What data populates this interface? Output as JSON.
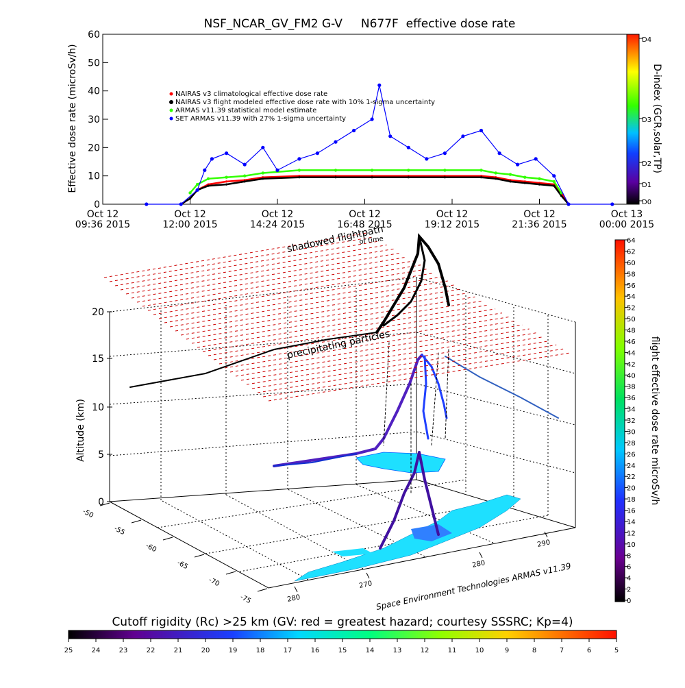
{
  "figure": {
    "title": "NSF_NCAR_GV_FM2 G-V     N677F  effective dose rate",
    "credit": "Space Environment Technologies ARMAS v11.39"
  },
  "chart_data": [
    {
      "type": "scatter",
      "ylabel": "Effective dose rate (microSv/h)",
      "ylim": [
        0,
        60
      ],
      "yticks": [
        "0",
        "10",
        "20",
        "30",
        "40",
        "50",
        "60"
      ],
      "xlim": [
        "2015-10-12 09:36",
        "2015-10-13 00:00"
      ],
      "x_ticks": [
        {
          "line1": "Oct 12",
          "line2": "09:36 2015"
        },
        {
          "line1": "Oct 12",
          "line2": "12:00 2015"
        },
        {
          "line1": "Oct 12",
          "line2": "14:24 2015"
        },
        {
          "line1": "Oct 12",
          "line2": "16:48 2015"
        },
        {
          "line1": "Oct 12",
          "line2": "19:12 2015"
        },
        {
          "line1": "Oct 12",
          "line2": "21:36 2015"
        },
        {
          "line1": "Oct 13",
          "line2": "00:00 2015"
        }
      ],
      "legend_placement": "upper-left",
      "series": [
        {
          "name": "NAIRAS v3 climatological effective dose rate",
          "color": "#ff0000",
          "x": [
            11.75,
            12.0,
            12.2,
            12.5,
            13.0,
            13.5,
            14.0,
            15.0,
            16.0,
            17.0,
            18.0,
            19.0,
            20.0,
            20.4,
            20.8,
            21.2,
            21.6,
            22.0,
            22.2,
            22.4
          ],
          "y": [
            0,
            2,
            5,
            7,
            8,
            8.5,
            9.5,
            10,
            10,
            10,
            10,
            10,
            10,
            9.5,
            8.5,
            8,
            7.5,
            7,
            4,
            0
          ]
        },
        {
          "name": "NAIRAS v3 flight modeled effective dose rate with 10% 1-sigma uncertainty",
          "color": "#000000",
          "x": [
            11.75,
            12.0,
            12.2,
            12.5,
            13.0,
            13.5,
            14.0,
            15.0,
            16.0,
            17.0,
            18.0,
            19.0,
            20.0,
            20.4,
            20.8,
            21.2,
            21.6,
            22.0,
            22.2,
            22.4
          ],
          "y": [
            0,
            2,
            5,
            6.5,
            7,
            8,
            9,
            9.5,
            9.5,
            9.5,
            9.5,
            9.5,
            9.5,
            9,
            8,
            7.5,
            7,
            6.5,
            3,
            0
          ]
        },
        {
          "name": "ARMAS v11.39 statistical model estimate",
          "color": "#33ff00",
          "x": [
            12.0,
            12.2,
            12.5,
            13.0,
            13.5,
            14.0,
            15.0,
            16.0,
            17.0,
            18.0,
            19.0,
            20.0,
            20.4,
            20.8,
            21.2,
            21.6,
            22.0,
            22.2
          ],
          "y": [
            4,
            7,
            9,
            9.5,
            10,
            11,
            12,
            12,
            12,
            12,
            12,
            12,
            11,
            10.5,
            9.5,
            9,
            8,
            4
          ]
        },
        {
          "name": "SET ARMAS v11.39 with 27% 1-sigma uncertainty",
          "color": "#0000ff",
          "x": [
            10.8,
            11.75,
            12.2,
            12.4,
            12.6,
            13.0,
            13.5,
            14.0,
            14.4,
            15.0,
            15.5,
            16.0,
            16.5,
            17.0,
            17.2,
            17.5,
            18.0,
            18.5,
            19.0,
            19.5,
            20.0,
            20.5,
            21.0,
            21.5,
            22.0,
            22.4,
            23.6
          ],
          "y": [
            0,
            0,
            5,
            12,
            16,
            18,
            14,
            20,
            12,
            16,
            18,
            22,
            26,
            30,
            42,
            24,
            20,
            16,
            18,
            24,
            26,
            18,
            14,
            16,
            10,
            0,
            0
          ]
        }
      ]
    },
    {
      "type": "scatter",
      "description_3d": true,
      "zlabel": "Altitude (km)",
      "zlim": [
        0,
        20
      ],
      "zticks": [
        "0",
        "5",
        "10",
        "15",
        "20"
      ],
      "lat_ticks": [
        "-50",
        "-55",
        "-60",
        "-65",
        "-70",
        "-75"
      ],
      "lon_ticks": [
        "280",
        "270",
        "280",
        "290"
      ],
      "annotations": [
        "shadowed flightpath",
        "of time",
        "precipitating particles"
      ],
      "colorbar": {
        "label": "flight effective dose rate microSv/h",
        "ticks": [
          "0",
          "2",
          "4",
          "6",
          "8",
          "10",
          "12",
          "14",
          "16",
          "18",
          "20",
          "22",
          "24",
          "26",
          "28",
          "30",
          "32",
          "34",
          "36",
          "38",
          "40",
          "42",
          "44",
          "46",
          "48",
          "50",
          "52",
          "54",
          "56",
          "58",
          "60",
          "62",
          "64"
        ]
      }
    }
  ],
  "dindex_colorbar": {
    "label": "D-index (GCR,solar,TP)",
    "ticks": [
      "D0",
      "D1",
      "D2",
      "D3",
      "D4"
    ]
  },
  "rc_colorbar": {
    "label": "Cutoff rigidity (Rc) >25 km (GV: red = greatest hazard; courtesy SSSRC; Kp=4)",
    "ticks": [
      "25",
      "24",
      "23",
      "22",
      "21",
      "20",
      "19",
      "18",
      "17",
      "16",
      "15",
      "14",
      "13",
      "12",
      "11",
      "10",
      "9",
      "8",
      "7",
      "6",
      "5"
    ]
  },
  "colors": {
    "grid_red": "#cc0000",
    "ocean_cyan": "#00e0ff"
  }
}
